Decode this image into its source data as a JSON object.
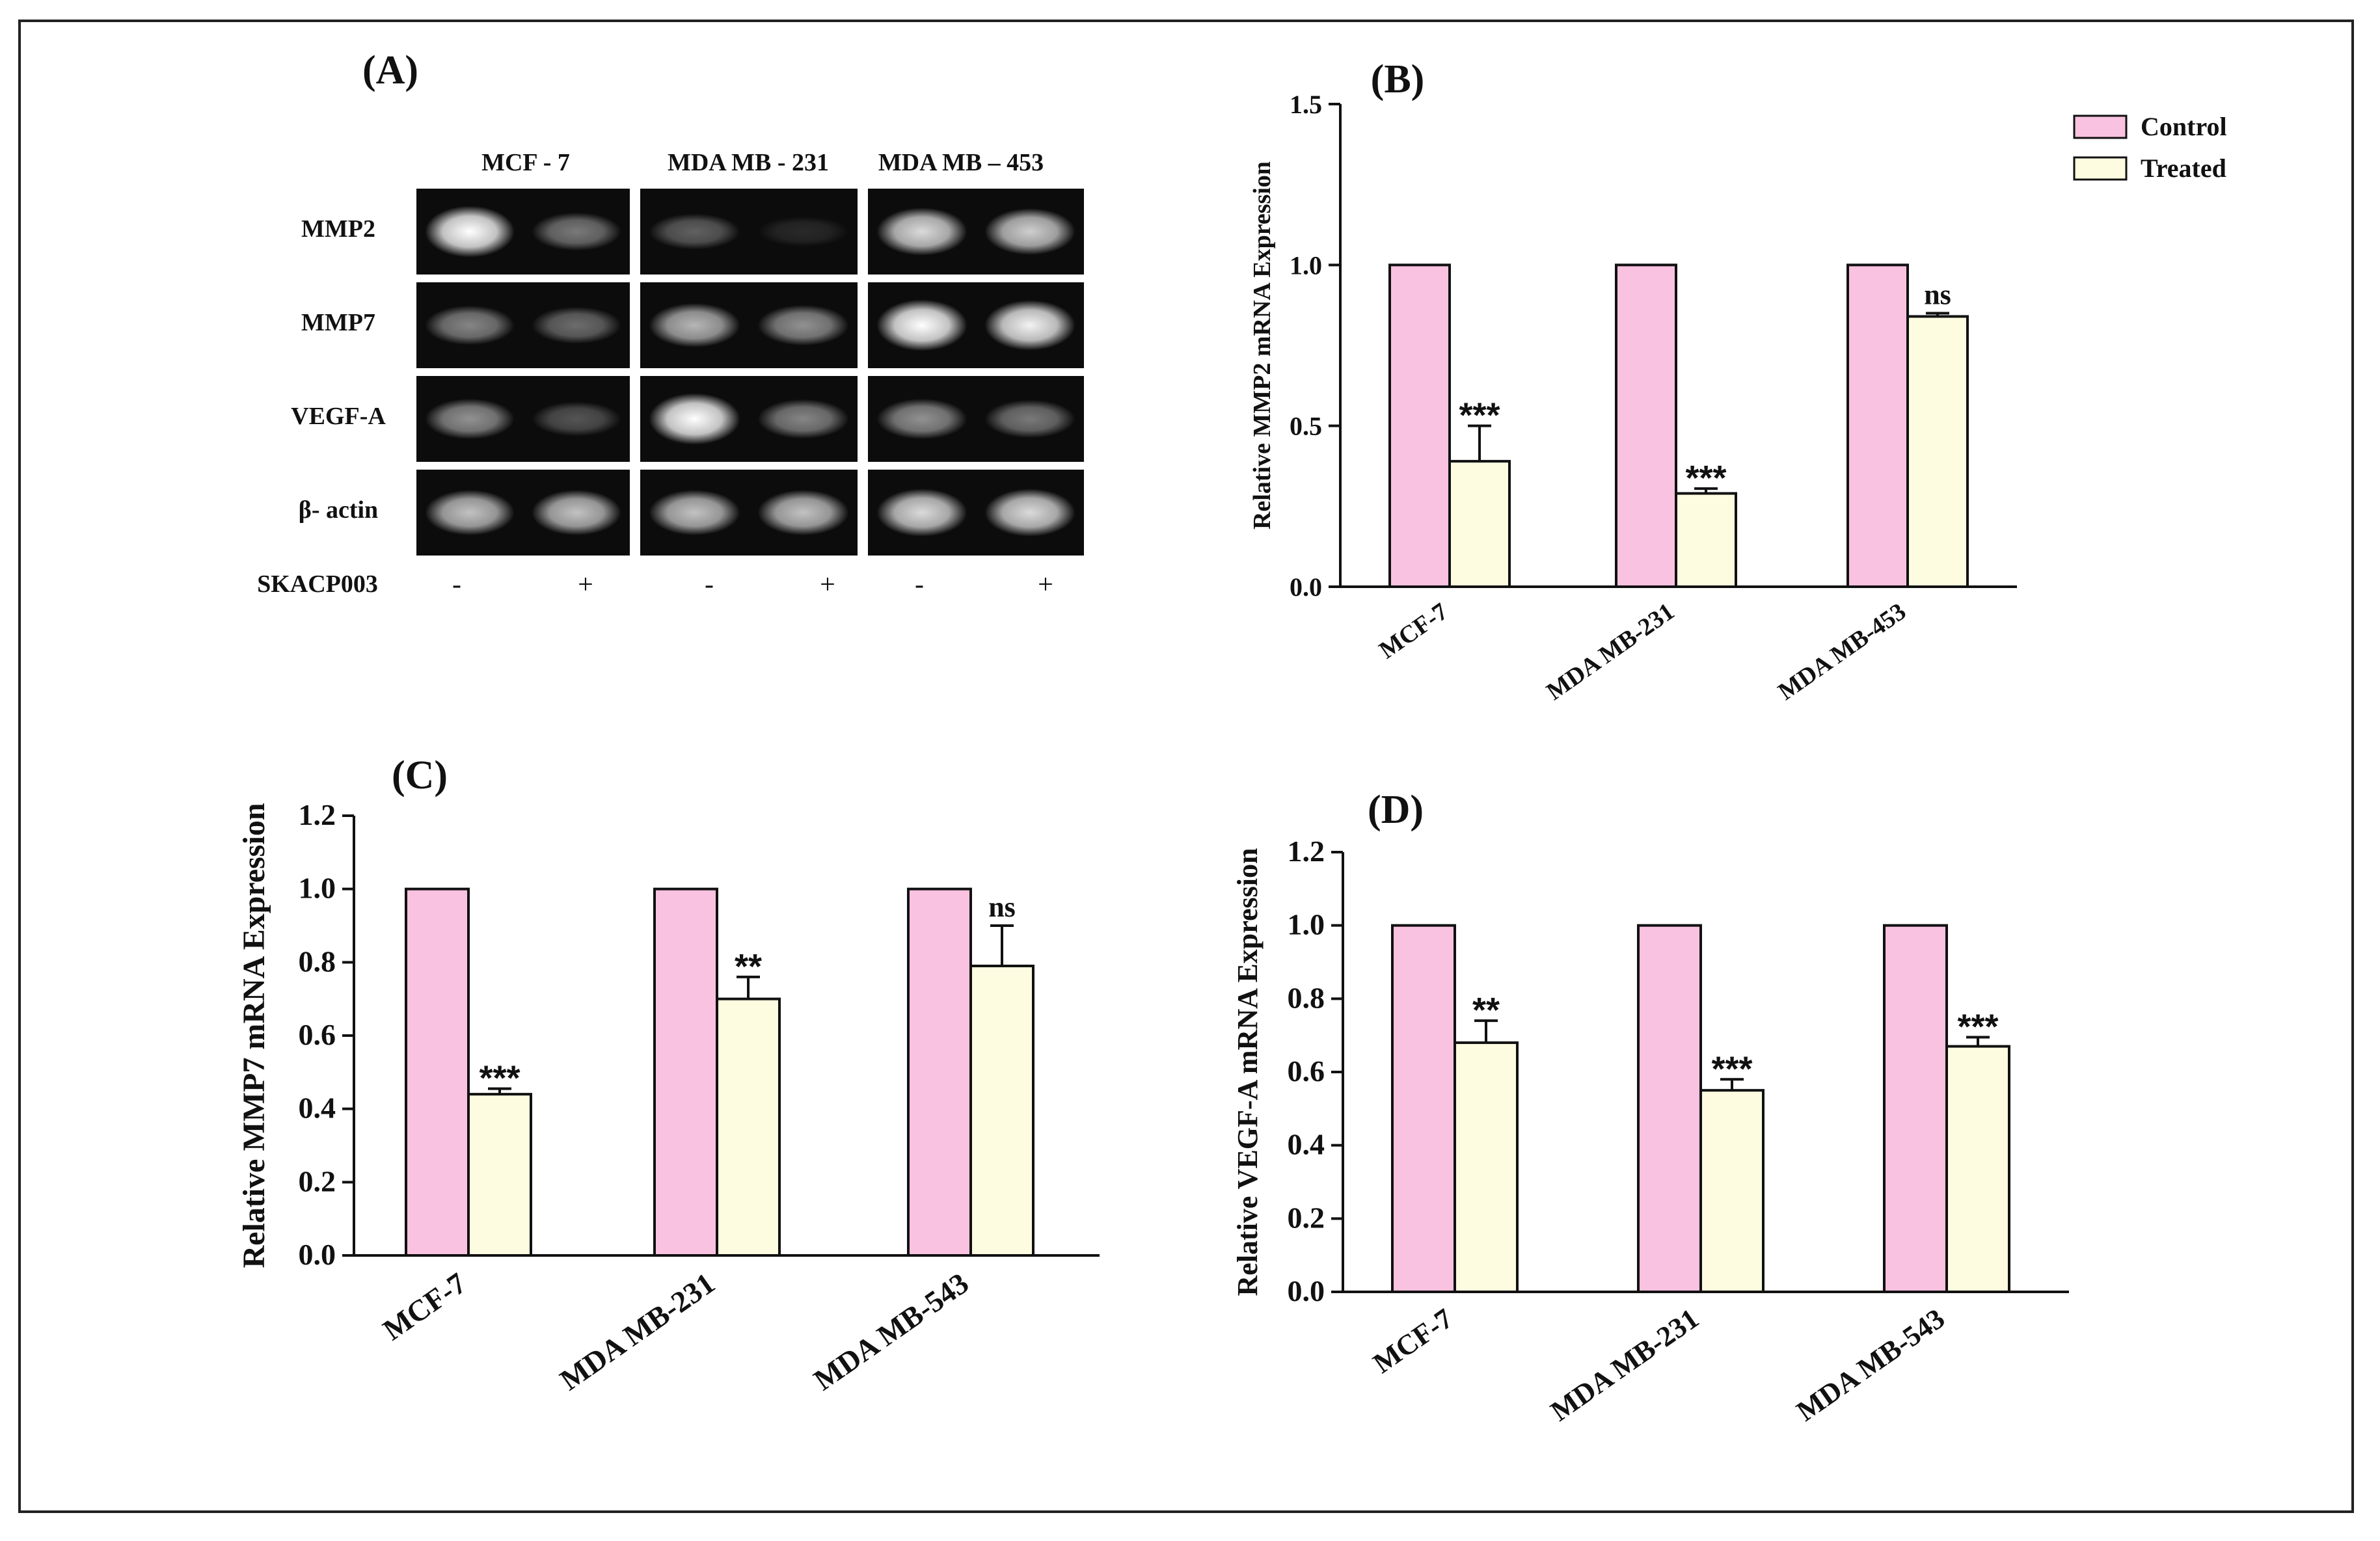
{
  "colors": {
    "control": "#f9c2e0",
    "treated": "#fdfbe0",
    "axis": "#111111"
  },
  "legend": {
    "control": "Control",
    "treated": "Treated"
  },
  "panel_a": {
    "label": "(A)",
    "groups": [
      "MCF - 7",
      "MDA MB - 231",
      "MDA MB – 453"
    ],
    "genes": [
      "MMP2",
      "MMP7",
      "VEGF-A",
      "β- actin"
    ],
    "treatment_label": "SKACP003",
    "signs": [
      "-",
      "+",
      "-",
      "+",
      "-",
      "+"
    ],
    "band_intensity": [
      [
        1.0,
        0.45,
        0.35,
        0.12,
        0.85,
        0.8
      ],
      [
        0.5,
        0.4,
        0.7,
        0.55,
        1.0,
        0.95
      ],
      [
        0.55,
        0.3,
        1.0,
        0.5,
        0.55,
        0.45
      ],
      [
        0.75,
        0.75,
        0.75,
        0.75,
        0.85,
        0.85
      ]
    ]
  },
  "chart_data": [
    {
      "type": "bar",
      "panel": "(B)",
      "title": "",
      "xlabel": "",
      "ylabel": "Relative MMP2 mRNA Expression",
      "categories": [
        "MCF-7",
        "MDA MB-231",
        "MDA MB-453"
      ],
      "series": [
        {
          "name": "Control",
          "values": [
            1.0,
            1.0,
            1.0
          ],
          "errors": [
            0,
            0,
            0
          ]
        },
        {
          "name": "Treated",
          "values": [
            0.39,
            0.29,
            0.84
          ],
          "errors": [
            0.11,
            0.015,
            0.01
          ]
        }
      ],
      "annotations": [
        "***",
        "***",
        "ns"
      ],
      "ylim": [
        0,
        1.5
      ],
      "yticks": [
        "0.0",
        "0.5",
        "1.0",
        "1.5"
      ],
      "legend": "top-right"
    },
    {
      "type": "bar",
      "panel": "(C)",
      "title": "",
      "xlabel": "",
      "ylabel": "Relative MMP7 mRNA Expression",
      "categories": [
        "MCF-7",
        "MDA MB-231",
        "MDA MB-543"
      ],
      "series": [
        {
          "name": "Control",
          "values": [
            1.0,
            1.0,
            1.0
          ],
          "errors": [
            0,
            0,
            0
          ]
        },
        {
          "name": "Treated",
          "values": [
            0.44,
            0.7,
            0.79
          ],
          "errors": [
            0.015,
            0.06,
            0.11
          ]
        }
      ],
      "annotations": [
        "***",
        "**",
        "ns"
      ],
      "ylim": [
        0,
        1.2
      ],
      "yticks": [
        "0.0",
        "0.2",
        "0.4",
        "0.6",
        "0.8",
        "1.0",
        "1.2"
      ]
    },
    {
      "type": "bar",
      "panel": "(D)",
      "title": "",
      "xlabel": "",
      "ylabel": "Relative VEGF-A mRNA Expression",
      "categories": [
        "MCF-7",
        "MDA MB-231",
        "MDA MB-543"
      ],
      "series": [
        {
          "name": "Control",
          "values": [
            1.0,
            1.0,
            1.0
          ],
          "errors": [
            0,
            0,
            0
          ]
        },
        {
          "name": "Treated",
          "values": [
            0.68,
            0.55,
            0.67
          ],
          "errors": [
            0.06,
            0.03,
            0.025
          ]
        }
      ],
      "annotations": [
        "**",
        "***",
        "***"
      ],
      "ylim": [
        0,
        1.2
      ],
      "yticks": [
        "0.0",
        "0.2",
        "0.4",
        "0.6",
        "0.8",
        "1.0",
        "1.2"
      ]
    }
  ]
}
